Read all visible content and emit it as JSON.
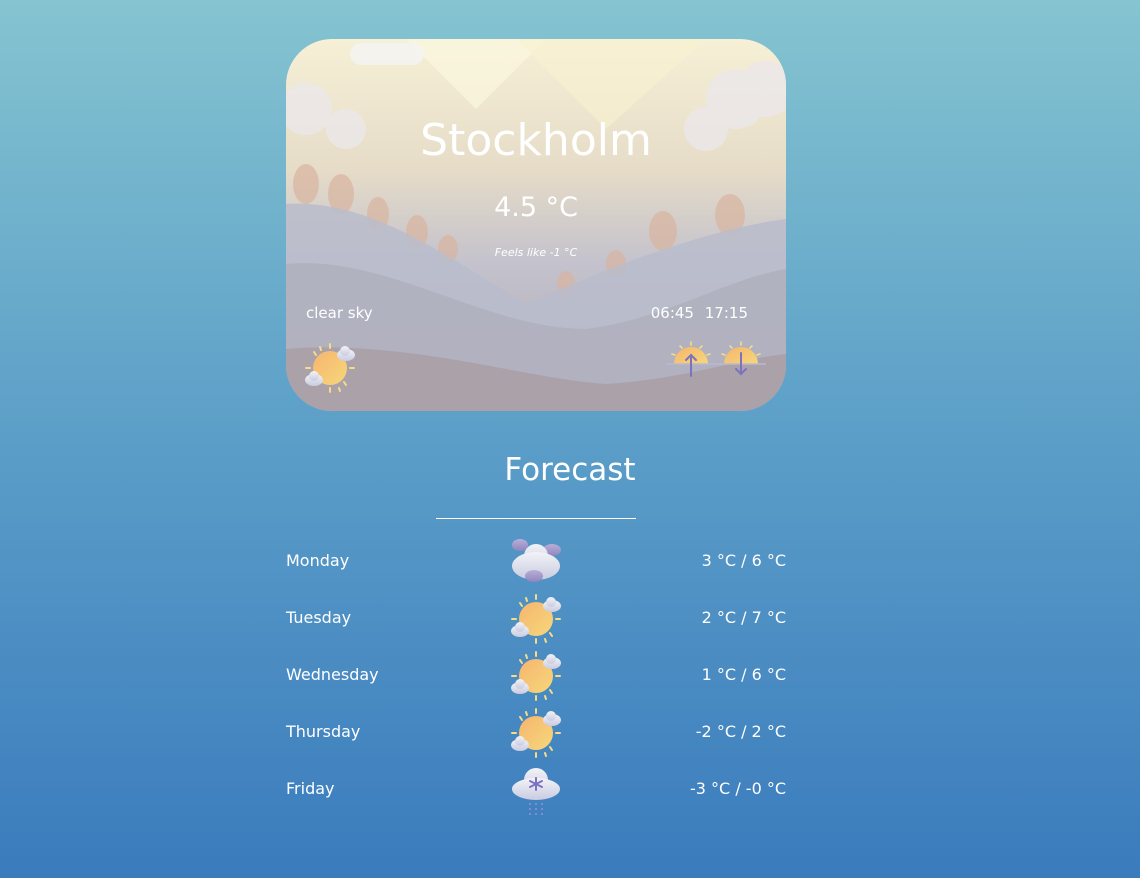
{
  "current": {
    "city": "Stockholm",
    "temperature": "4.5 °C",
    "feels_like": "Feels like -1 °C",
    "description": "clear sky",
    "icon": "partly-sunny-icon",
    "sunrise": "06:45",
    "sunset": "17:15"
  },
  "forecast": {
    "title": "Forecast",
    "days": [
      {
        "day": "Monday",
        "icon": "cloudy-icon",
        "range": "3 °C / 6 °C"
      },
      {
        "day": "Tuesday",
        "icon": "partly-sunny-icon",
        "range": "2 °C / 7 °C"
      },
      {
        "day": "Wednesday",
        "icon": "partly-sunny-icon",
        "range": "1 °C / 6 °C"
      },
      {
        "day": "Thursday",
        "icon": "partly-sunny-icon",
        "range": "-2 °C / 2 °C"
      },
      {
        "day": "Friday",
        "icon": "snow-icon",
        "range": "-3 °C / -0 °C"
      }
    ]
  },
  "colors": {
    "sun": "#f5c26b",
    "cloud": "#dfe3ee",
    "accent": "#7c72c0",
    "bg_top": "#85c4d0",
    "bg_bottom": "#3a7bbd"
  }
}
